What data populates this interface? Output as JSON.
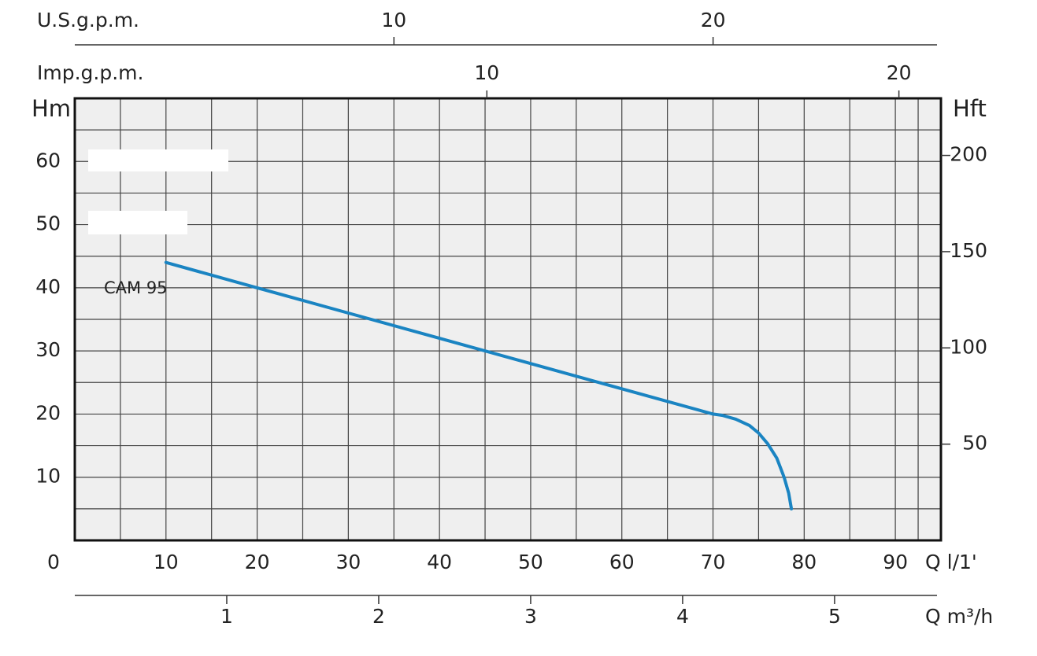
{
  "chart_data": {
    "type": "line",
    "xlabel": "Q l/1'",
    "ylabel": "Hm",
    "y2label": "Hft",
    "xlim": [
      0,
      95
    ],
    "xticks": [
      0,
      10,
      20,
      30,
      40,
      50,
      60,
      70,
      80,
      90
    ],
    "ylim": [
      0,
      70
    ],
    "yticks": [
      10,
      20,
      30,
      40,
      50,
      60
    ],
    "y2lim": [
      0,
      229.66
    ],
    "y2ticks": [
      50,
      100,
      150,
      200
    ],
    "grid": true,
    "top_axes": [
      {
        "label": "U.S.g.p.m.",
        "lim": [
          0,
          27.14
        ],
        "ticks": [
          10,
          20
        ]
      },
      {
        "label": "Imp.g.p.m.",
        "lim": [
          0,
          21.02
        ],
        "ticks": [
          10,
          20
        ]
      }
    ],
    "bottom_axes": [
      {
        "label": "Q m³/h",
        "lim": [
          0,
          5.7
        ],
        "ticks": [
          1,
          2,
          3,
          4,
          5
        ]
      }
    ],
    "series": [
      {
        "name": "CAM 95",
        "color": "#1a84c2",
        "x": [
          10,
          20,
          30,
          40,
          50,
          60,
          70,
          71,
          72.5,
          74,
          75,
          76,
          77,
          77.8,
          78.3,
          78.6
        ],
        "values": [
          44,
          40,
          36,
          32,
          28,
          24,
          20,
          19.8,
          19.2,
          18.2,
          17,
          15.3,
          13,
          10,
          7.5,
          5
        ]
      }
    ]
  }
}
